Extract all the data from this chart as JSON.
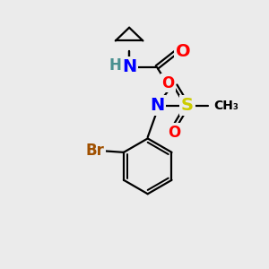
{
  "bg_color": "#ebebeb",
  "atom_colors": {
    "C": "#000000",
    "H": "#4a9090",
    "N": "#0000ff",
    "O": "#ff0000",
    "S": "#cccc00",
    "Br": "#a05000"
  },
  "bond_color": "#000000",
  "bond_width": 1.6,
  "font_size_large": 14,
  "font_size_med": 12,
  "font_size_small": 10
}
